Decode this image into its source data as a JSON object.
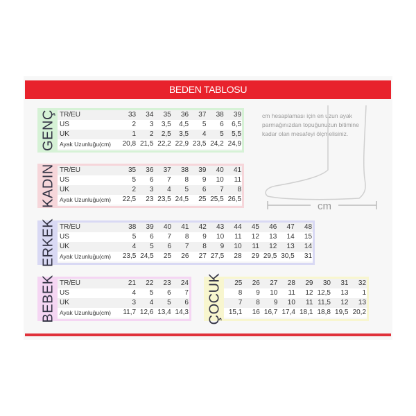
{
  "title": "BEDEN TABLOSU",
  "colors": {
    "banner": "#e8222c",
    "genc": "#d6f2d6",
    "kadin": "#f6d6da",
    "erkek": "#d9d9f4",
    "bebek": "#f5d6f3",
    "cocuk": "#f8f6cf"
  },
  "note": "cm hesaplaması için en uzun ayak parmağınızdan topuğunuzun bitimine kadar olan mesafeyi ölçmelisiniz.",
  "foot_unit": "cm",
  "tables": {
    "genc": {
      "label": "GENÇ",
      "rows": [
        {
          "label": "TR/EU",
          "values": [
            "33",
            "34",
            "35",
            "36",
            "37",
            "38",
            "39"
          ]
        },
        {
          "label": "US",
          "values": [
            "2",
            "3",
            "3,5",
            "4,5",
            "5",
            "6",
            "6,5"
          ]
        },
        {
          "label": "UK",
          "values": [
            "1",
            "2",
            "2,5",
            "3,5",
            "4",
            "5",
            "5,5"
          ]
        },
        {
          "label": "Ayak Uzunluğu(cm)",
          "values": [
            "20,8",
            "21,5",
            "22,2",
            "22,9",
            "23,5",
            "24,2",
            "24,9"
          ]
        }
      ]
    },
    "kadin": {
      "label": "KADIN",
      "rows": [
        {
          "label": "TR/EU",
          "values": [
            "35",
            "36",
            "37",
            "38",
            "39",
            "40",
            "41"
          ]
        },
        {
          "label": "US",
          "values": [
            "5",
            "6",
            "7",
            "8",
            "9",
            "10",
            "11"
          ]
        },
        {
          "label": "UK",
          "values": [
            "2",
            "3",
            "4",
            "5",
            "6",
            "7",
            "8"
          ]
        },
        {
          "label": "Ayak Uzunluğu(cm)",
          "values": [
            "22,5",
            "23",
            "23,5",
            "24,5",
            "25",
            "25,5",
            "26,5"
          ]
        }
      ]
    },
    "erkek": {
      "label": "ERKEK",
      "rows": [
        {
          "label": "TR/EU",
          "values": [
            "38",
            "39",
            "40",
            "41",
            "42",
            "43",
            "44",
            "45",
            "46",
            "47",
            "48"
          ]
        },
        {
          "label": "US",
          "values": [
            "5",
            "6",
            "7",
            "8",
            "9",
            "10",
            "11",
            "12",
            "13",
            "14",
            "15"
          ]
        },
        {
          "label": "UK",
          "values": [
            "4",
            "5",
            "6",
            "7",
            "8",
            "9",
            "10",
            "11",
            "12",
            "13",
            "14"
          ]
        },
        {
          "label": "Ayak Uzunluğu(cm)",
          "values": [
            "23,5",
            "24,5",
            "25",
            "26",
            "27",
            "27,5",
            "28",
            "29",
            "29,5",
            "30,5",
            "31"
          ]
        }
      ]
    },
    "bebek": {
      "label": "BEBEK",
      "rows": [
        {
          "label": "TR/EU",
          "values": [
            "21",
            "22",
            "23",
            "24"
          ]
        },
        {
          "label": "US",
          "values": [
            "4",
            "5",
            "6",
            "7"
          ]
        },
        {
          "label": "UK",
          "values": [
            "3",
            "4",
            "5",
            "6"
          ]
        },
        {
          "label": "Ayak Uzunluğu(cm)",
          "values": [
            "11,7",
            "12,6",
            "13,4",
            "14,3"
          ]
        }
      ]
    },
    "cocuk": {
      "label": "ÇOCUK",
      "rows": [
        {
          "values": [
            "25",
            "26",
            "27",
            "28",
            "29",
            "30",
            "31",
            "32"
          ]
        },
        {
          "values": [
            "8",
            "9",
            "10",
            "11",
            "12",
            "12,5",
            "13",
            "1"
          ]
        },
        {
          "values": [
            "7",
            "8",
            "9",
            "10",
            "11",
            "11,5",
            "12",
            "13"
          ]
        },
        {
          "values": [
            "15,1",
            "16",
            "16,7",
            "17,4",
            "18,1",
            "18,8",
            "19,5",
            "20,2"
          ]
        }
      ]
    }
  }
}
